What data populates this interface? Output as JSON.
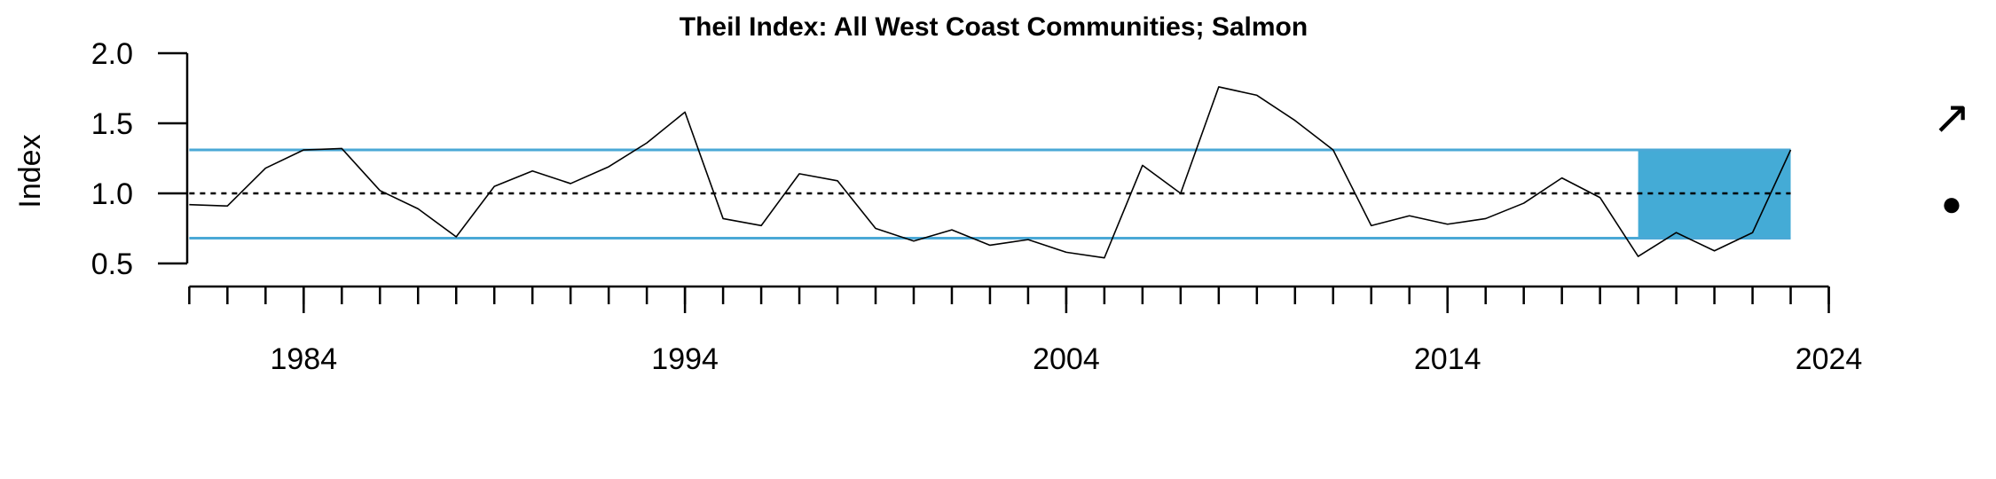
{
  "chart_data": {
    "type": "line",
    "title": "Theil Index: All West Coast Communities; Salmon",
    "xlabel": "",
    "ylabel": "Index",
    "xlim": [
      1980,
      2024
    ],
    "ylim": [
      0.5,
      2.0
    ],
    "x_ticks": [
      "1984",
      "1994",
      "2004",
      "2014",
      "2024"
    ],
    "y_ticks": [
      "0.5",
      "1.0",
      "1.5",
      "2.0"
    ],
    "mean": 1.0,
    "upper_sd": 1.31,
    "lower_sd": 0.68,
    "highlight_range": [
      2019,
      2023
    ],
    "trend_symbol": "↗",
    "status_symbol": "●",
    "colors": {
      "line": "#000000",
      "band": "#4aa8d6",
      "highlight": "#44abd6",
      "mean_line": "#000000"
    },
    "series": [
      {
        "x": [
          1981,
          1982,
          1983,
          1984,
          1985,
          1986,
          1987,
          1988,
          1989,
          1990,
          1991,
          1992,
          1993,
          1994,
          1995,
          1996,
          1997,
          1998,
          1999,
          2000,
          2001,
          2002,
          2003,
          2004,
          2005,
          2006,
          2007,
          2008,
          2009,
          2010,
          2011,
          2012,
          2013,
          2014,
          2015,
          2016,
          2017,
          2018,
          2019,
          2020,
          2021,
          2022,
          2023
        ],
        "values": [
          0.92,
          0.91,
          1.18,
          1.31,
          1.32,
          1.02,
          0.89,
          0.69,
          1.05,
          1.16,
          1.07,
          1.19,
          1.36,
          1.58,
          0.82,
          0.77,
          1.14,
          1.09,
          0.75,
          0.66,
          0.74,
          0.63,
          0.67,
          0.58,
          0.54,
          1.2,
          1.0,
          1.76,
          1.7,
          1.52,
          1.31,
          0.77,
          0.84,
          0.78,
          0.82,
          0.93,
          1.11,
          0.97,
          0.55,
          0.72,
          0.59,
          0.72,
          1.31
        ]
      }
    ]
  }
}
